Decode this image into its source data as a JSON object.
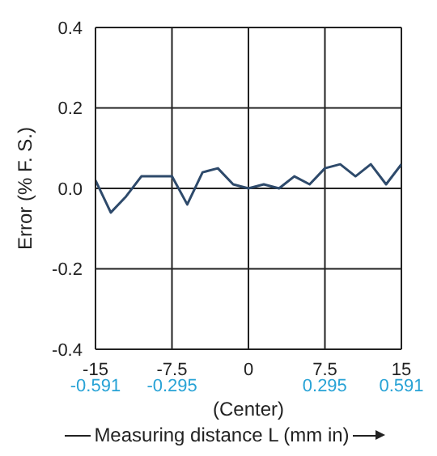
{
  "chart_data": {
    "type": "line",
    "xlabel": "Measuring distance L (mm in)",
    "ylabel": "Error (% F. S.)",
    "annotations": [
      "(Center)"
    ],
    "x": [
      -15,
      -13.5,
      -12,
      -10.5,
      -9,
      -7.5,
      -6,
      -4.5,
      -3,
      -1.5,
      0,
      1.5,
      3,
      4.5,
      6,
      7.5,
      9,
      10.5,
      12,
      13.5,
      15
    ],
    "series": [
      {
        "color": "#2e4a6b",
        "values": [
          0.02,
          -0.06,
          -0.02,
          0.03,
          0.03,
          0.03,
          -0.04,
          0.04,
          0.05,
          0.01,
          0.0,
          0.01,
          0.0,
          0.03,
          0.01,
          0.05,
          0.06,
          0.03,
          0.06,
          0.01,
          0.06
        ]
      }
    ],
    "xlim": [
      -15,
      15
    ],
    "ylim": [
      -0.4,
      0.4
    ],
    "x2lim": [
      -0.591,
      0.591
    ],
    "xticks": [
      -15,
      -7.5,
      0,
      7.5,
      15
    ],
    "x2ticks": [
      -0.591,
      -0.295,
      0.295,
      0.591
    ],
    "yticks": [
      -0.4,
      -0.2,
      {
        "value": 0,
        "label": "0.0"
      },
      0.2,
      0.4
    ],
    "grid": true,
    "marker": "none",
    "line_style": "solid"
  }
}
